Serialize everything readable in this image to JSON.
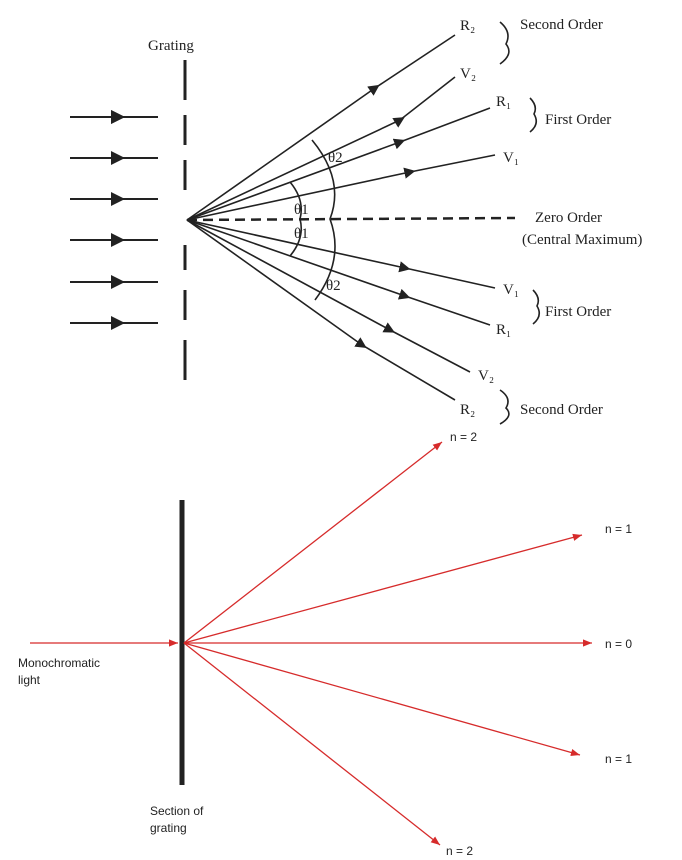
{
  "top": {
    "grating": "Grating",
    "labels": [
      "R₂",
      "V₂",
      "R₁",
      "V₁",
      "V₁",
      "R₁",
      "V₂",
      "R₂"
    ],
    "orders": [
      "Second Order",
      "First Order",
      "Zero Order",
      "(Central Maximum)",
      "First Order",
      "Second Order"
    ],
    "angles": [
      "θ2",
      "θ1",
      "θ1",
      "θ2"
    ]
  },
  "bottom": {
    "orders": [
      "n = 2",
      "n = 1",
      "n = 0",
      "n = 1",
      "n = 2"
    ],
    "source": [
      "Monochromatic",
      "light"
    ],
    "grating": [
      "Section of",
      "grating"
    ]
  }
}
